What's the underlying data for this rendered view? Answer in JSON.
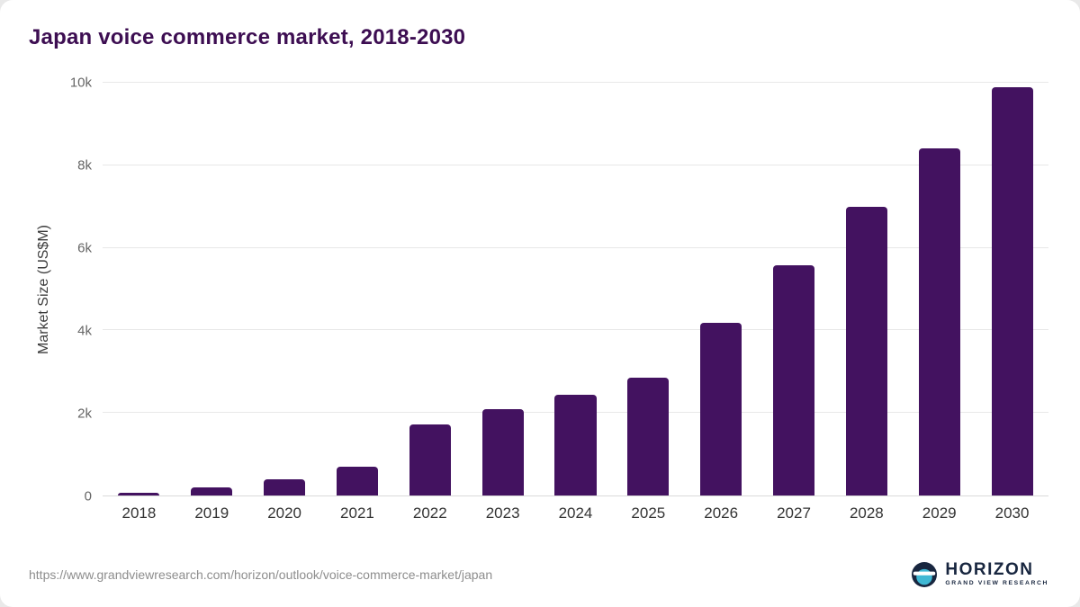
{
  "header": {
    "title": "Japan voice commerce market, 2018-2030"
  },
  "chart_data": {
    "type": "bar",
    "title": "Japan voice commerce market, 2018-2030",
    "categories": [
      "2018",
      "2019",
      "2020",
      "2021",
      "2022",
      "2023",
      "2024",
      "2025",
      "2026",
      "2027",
      "2028",
      "2029",
      "2030"
    ],
    "values": [
      75,
      200,
      400,
      690,
      1720,
      2090,
      2450,
      2850,
      4180,
      5570,
      7000,
      8420,
      9900
    ],
    "xlabel": "",
    "ylabel": "Market Size (US$M)",
    "ylim": [
      0,
      10000
    ],
    "yticks": [
      {
        "label": "0",
        "value": 0
      },
      {
        "label": "2k",
        "value": 2000
      },
      {
        "label": "4k",
        "value": 4000
      },
      {
        "label": "6k",
        "value": 6000
      },
      {
        "label": "8k",
        "value": 8000
      },
      {
        "label": "10k",
        "value": 10000
      }
    ],
    "grid": "horizontal",
    "legend": "none",
    "bar_color": "#431260"
  },
  "footer": {
    "source_url": "https://www.grandviewresearch.com/horizon/outlook/voice-commerce-market/japan",
    "logo_title": "HORIZON",
    "logo_subtitle": "GRAND VIEW RESEARCH"
  },
  "colors": {
    "bar": "#431260",
    "title": "#3d0e52",
    "logo_navy": "#18263f",
    "logo_teal": "#3fb8d4"
  }
}
